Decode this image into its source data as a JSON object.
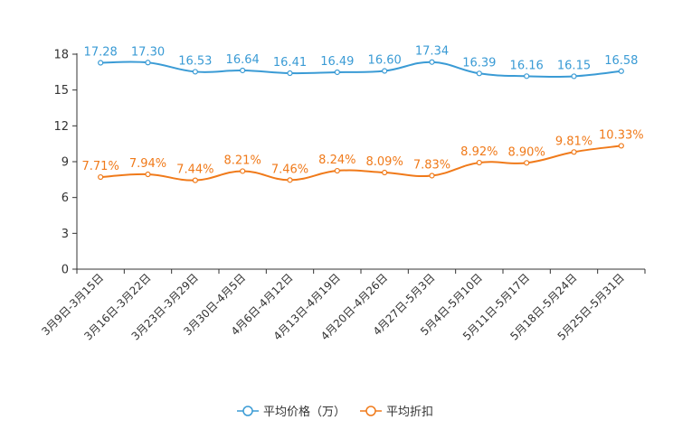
{
  "chart_data": {
    "type": "line",
    "title": "",
    "xlabel": "",
    "ylabel": "",
    "ylim": [
      0,
      18
    ],
    "yticks": [
      0,
      3,
      6,
      9,
      12,
      15,
      18
    ],
    "categories": [
      "3月9日-3月15日",
      "3月16日-3月22日",
      "3月23日-3月29日",
      "3月30日-4月5日",
      "4月6日-4月12日",
      "4月13日-4月19日",
      "4月20日-4月26日",
      "4月27日-5月3日",
      "5月4日-5月10日",
      "5月11日-5月17日",
      "5月18日-5月24日",
      "5月25日-5月31日"
    ],
    "series": [
      {
        "name": "平均价格（万）",
        "color": "#3a9bd5",
        "values": [
          17.28,
          17.3,
          16.53,
          16.64,
          16.41,
          16.49,
          16.6,
          17.34,
          16.39,
          16.16,
          16.15,
          16.58
        ],
        "labels": [
          "17.28",
          "17.30",
          "16.53",
          "16.64",
          "16.41",
          "16.49",
          "16.60",
          "17.34",
          "16.39",
          "16.16",
          "16.15",
          "16.58"
        ]
      },
      {
        "name": "平均折扣",
        "color": "#f07a1a",
        "values": [
          7.71,
          7.94,
          7.44,
          8.21,
          7.46,
          8.24,
          8.09,
          7.83,
          8.92,
          8.9,
          9.81,
          10.33
        ],
        "labels": [
          "7.71%",
          "7.94%",
          "7.44%",
          "8.21%",
          "7.46%",
          "8.24%",
          "8.09%",
          "7.83%",
          "8.92%",
          "8.90%",
          "9.81%",
          "10.33%"
        ]
      }
    ],
    "legend_position": "bottom-center"
  }
}
